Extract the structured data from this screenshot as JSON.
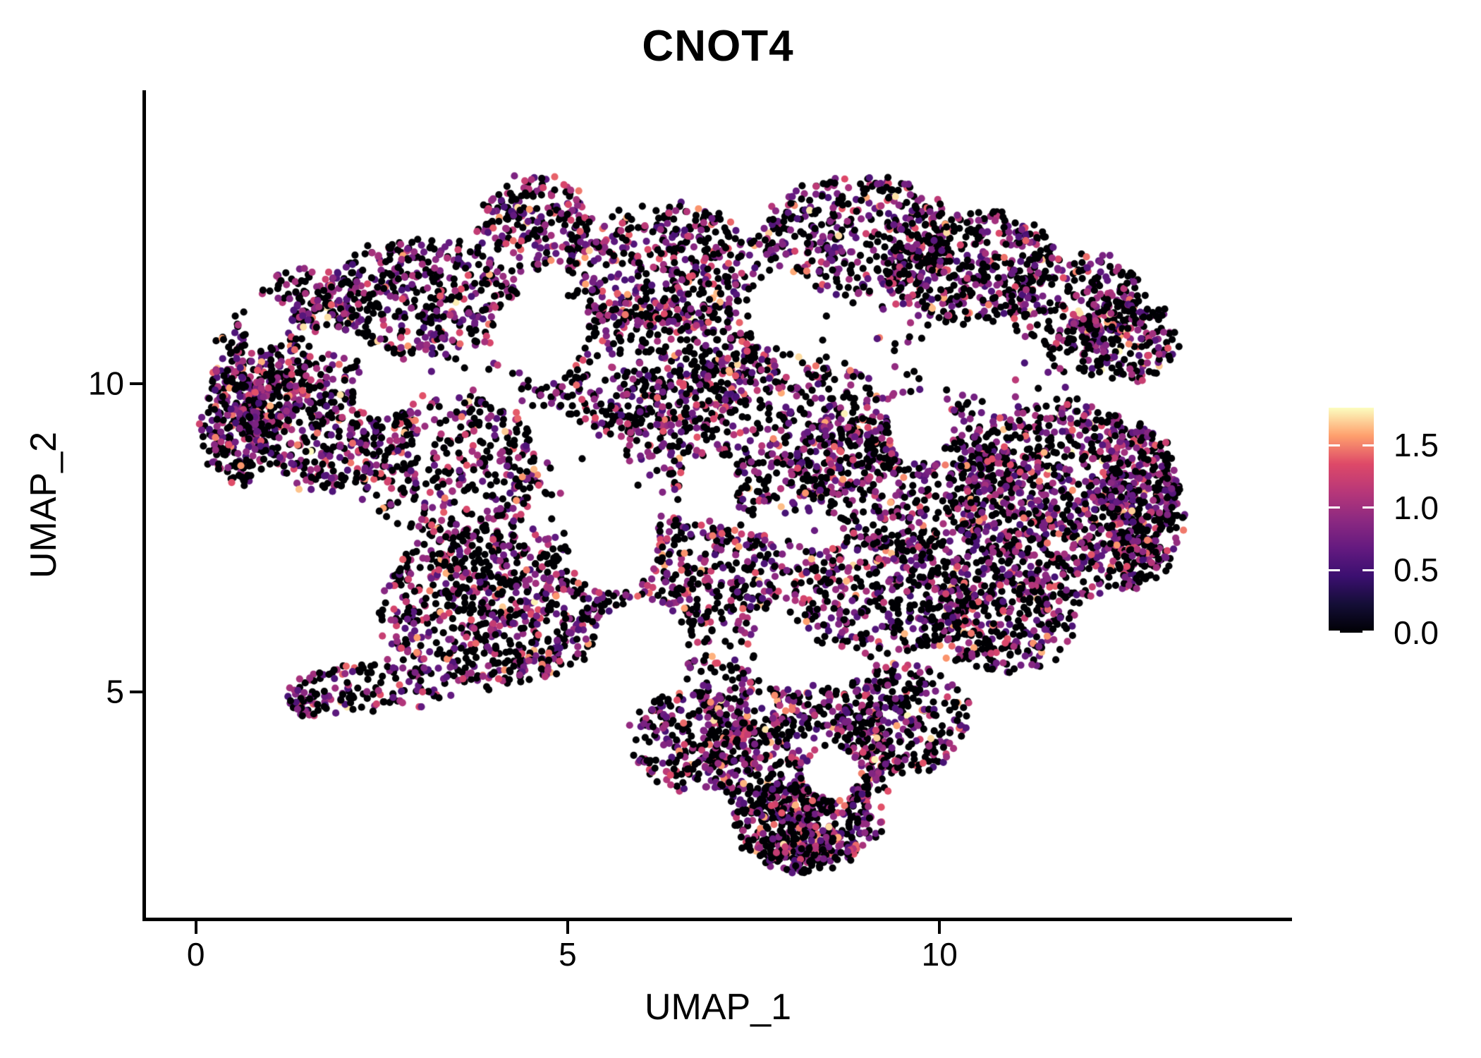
{
  "title": "CNOT4",
  "axes": {
    "x": {
      "label": "UMAP_1",
      "tick_labels": [
        "0",
        "5",
        "10"
      ]
    },
    "y": {
      "label": "UMAP_2",
      "tick_labels": [
        "10",
        "5"
      ]
    }
  },
  "legend": {
    "tick_labels": [
      "1.5",
      "1.0",
      "0.5",
      "0.0"
    ]
  },
  "chart_data": {
    "type": "scatter",
    "title": "CNOT4",
    "xlabel": "UMAP_1",
    "ylabel": "UMAP_2",
    "x_tick_values": [
      0,
      5,
      10
    ],
    "y_tick_values": [
      10,
      5
    ],
    "xlim": [
      -0.68,
      14.72
    ],
    "ylim": [
      1.33,
      14.74
    ],
    "grid": false,
    "background": "#ffffff",
    "point_radius_px": 5.1,
    "seed": 1337,
    "colorbar": {
      "min": 0.0,
      "max": 1.8,
      "tick_values": [
        0.0,
        0.5,
        1.0,
        1.5
      ],
      "palette": "magma",
      "stops": [
        "#000004",
        "#140E36",
        "#3B0F70",
        "#641A80",
        "#8C2981",
        "#B73779",
        "#DE4968",
        "#FE9F6D",
        "#FCFDBF"
      ]
    },
    "expression_distribution": [
      {
        "p": 0.52,
        "range": [
          0.0,
          0.0
        ]
      },
      {
        "p": 0.335,
        "range": [
          0.5,
          1.05
        ]
      },
      {
        "p": 0.1,
        "range": [
          1.05,
          1.4
        ]
      },
      {
        "p": 0.038,
        "range": [
          1.4,
          1.65
        ]
      },
      {
        "p": 0.007,
        "range": [
          1.65,
          1.8
        ]
      }
    ],
    "clusters": [
      {
        "cx": 0.9,
        "cy": 10.2,
        "rx": 0.65,
        "ry": 1.05,
        "n": 260
      },
      {
        "cx": 0.55,
        "cy": 9.3,
        "rx": 0.45,
        "ry": 0.95,
        "n": 220
      },
      {
        "cx": 1.6,
        "cy": 11.35,
        "rx": 0.75,
        "ry": 0.5,
        "n": 160
      },
      {
        "cx": 1.8,
        "cy": 9.4,
        "rx": 1.1,
        "ry": 1.1,
        "n": 420
      },
      {
        "cx": 3.1,
        "cy": 11.4,
        "rx": 1.3,
        "ry": 0.95,
        "n": 420
      },
      {
        "cx": 4.55,
        "cy": 12.6,
        "rx": 0.75,
        "ry": 0.75,
        "n": 220
      },
      {
        "cx": 6.3,
        "cy": 11.9,
        "rx": 1.3,
        "ry": 1.0,
        "n": 420
      },
      {
        "cx": 8.9,
        "cy": 12.4,
        "rx": 1.3,
        "ry": 0.95,
        "n": 420
      },
      {
        "cx": 10.4,
        "cy": 11.9,
        "rx": 1.2,
        "ry": 0.9,
        "n": 420
      },
      {
        "cx": 11.9,
        "cy": 11.3,
        "rx": 0.9,
        "ry": 0.85,
        "n": 260
      },
      {
        "cx": 12.5,
        "cy": 10.7,
        "rx": 0.7,
        "ry": 0.7,
        "n": 180
      },
      {
        "cx": 6.0,
        "cy": 10.3,
        "rx": 1.7,
        "ry": 1.1,
        "n": 500
      },
      {
        "cx": 7.6,
        "cy": 9.2,
        "rx": 1.9,
        "ry": 1.3,
        "n": 600
      },
      {
        "cx": 9.6,
        "cy": 8.6,
        "rx": 1.5,
        "ry": 1.3,
        "n": 520
      },
      {
        "cx": 11.7,
        "cy": 8.1,
        "rx": 1.5,
        "ry": 1.6,
        "n": 950
      },
      {
        "cx": 12.7,
        "cy": 8.0,
        "rx": 0.55,
        "ry": 1.3,
        "n": 300
      },
      {
        "cx": 3.4,
        "cy": 8.6,
        "rx": 1.3,
        "ry": 1.2,
        "n": 380
      },
      {
        "cx": 4.0,
        "cy": 6.4,
        "rx": 1.5,
        "ry": 1.3,
        "n": 780
      },
      {
        "cx": 6.6,
        "cy": 6.9,
        "rx": 1.4,
        "ry": 0.9,
        "n": 420
      },
      {
        "cx": 9.3,
        "cy": 6.6,
        "rx": 1.3,
        "ry": 1.0,
        "n": 420
      },
      {
        "cx": 10.8,
        "cy": 6.2,
        "rx": 1.0,
        "ry": 0.9,
        "n": 320
      },
      {
        "cx": 2.4,
        "cy": 5.1,
        "rx": 1.1,
        "ry": 0.4,
        "n": 120
      },
      {
        "cx": 1.5,
        "cy": 4.8,
        "rx": 0.3,
        "ry": 0.22,
        "n": 45
      },
      {
        "cx": 7.1,
        "cy": 5.4,
        "rx": 0.5,
        "ry": 0.9,
        "n": 90
      },
      {
        "cx": 6.7,
        "cy": 4.2,
        "rx": 0.9,
        "ry": 0.8,
        "n": 260
      },
      {
        "cx": 8.1,
        "cy": 4.0,
        "rx": 1.3,
        "ry": 1.1,
        "n": 520
      },
      {
        "cx": 9.5,
        "cy": 4.6,
        "rx": 0.9,
        "ry": 0.9,
        "n": 300
      },
      {
        "cx": 8.2,
        "cy": 2.9,
        "rx": 1.0,
        "ry": 0.7,
        "n": 420
      },
      {
        "cx": 8.1,
        "cy": 2.45,
        "rx": 0.5,
        "ry": 0.35,
        "n": 130
      },
      {
        "cx": 7.5,
        "cy": 9.5,
        "rx": 4.5,
        "ry": 3.2,
        "n": 300
      }
    ],
    "holes": [
      {
        "cx": 4.65,
        "cy": 10.85,
        "rx": 0.6,
        "ry": 0.72
      },
      {
        "cx": 8.0,
        "cy": 11.15,
        "rx": 0.48,
        "ry": 0.58
      },
      {
        "cx": 9.75,
        "cy": 9.35,
        "rx": 0.45,
        "ry": 0.54
      },
      {
        "cx": 5.6,
        "cy": 7.4,
        "rx": 0.6,
        "ry": 0.78
      },
      {
        "cx": 2.5,
        "cy": 9.9,
        "rx": 0.38,
        "ry": 0.46
      },
      {
        "cx": 10.6,
        "cy": 10.4,
        "rx": 0.5,
        "ry": 0.6
      },
      {
        "cx": 8.55,
        "cy": 3.7,
        "rx": 0.36,
        "ry": 0.43
      },
      {
        "cx": 6.05,
        "cy": 5.75,
        "rx": 0.55,
        "ry": 0.75
      },
      {
        "cx": 0.95,
        "cy": 11.0,
        "rx": 0.33,
        "ry": 0.4
      },
      {
        "cx": 6.9,
        "cy": 8.35,
        "rx": 0.4,
        "ry": 0.48
      }
    ]
  }
}
